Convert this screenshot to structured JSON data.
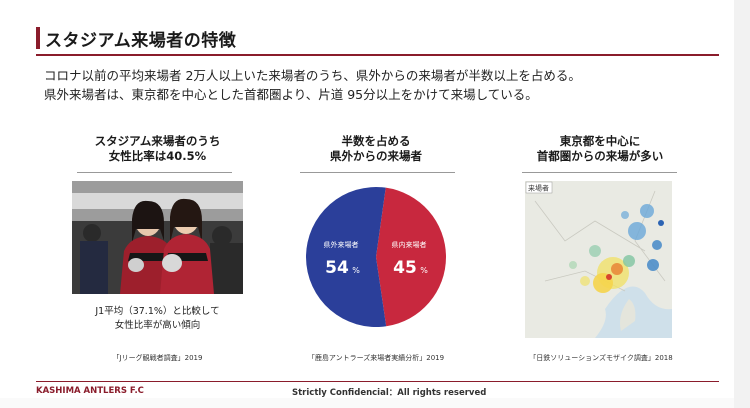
{
  "slide": {
    "title": "スタジアム来場者の特徴",
    "intro_lines": [
      "コロナ以前の平均来場者 2万人以上いた来場者のうち、県外からの来場者が半数以上を占める。",
      "県外来場者は、東京都を中心とした首都圏より、片道 95分以上をかけて来場している。"
    ]
  },
  "columns": [
    {
      "heading_lines": [
        "スタジアム来場者のうち",
        "女性比率は40.5%"
      ],
      "stat_lines": [
        "J1平均（37.1%）と比較して",
        "女性比率が高い傾向"
      ],
      "source": "「Jリーグ観戦者調査」2019"
    },
    {
      "heading_lines": [
        "半数を占める",
        "県外からの来場者"
      ],
      "source": "「鹿島アントラーズ来場者実績分析」2019"
    },
    {
      "heading_lines": [
        "東京都を中心に",
        "首都圏からの来場が多い"
      ],
      "map_label": "来場者",
      "source": "「日鉄ソリューションズモザイク調査」2018"
    }
  ],
  "chart_data": {
    "type": "pie",
    "slices": [
      {
        "label": "県外来場者",
        "value": 54,
        "unit": "%",
        "color": "#2b3f9a"
      },
      {
        "label": "県内来場者",
        "value": 45,
        "unit": "%",
        "color": "#c8283e"
      }
    ]
  },
  "footer": {
    "left": "KASHIMA ANTLERS F.C",
    "center": "Strictly Confidencial：All rights reserved"
  },
  "colors": {
    "accent": "#8a1c2b",
    "outside": "#2b3f9a",
    "inside": "#c8283e"
  }
}
